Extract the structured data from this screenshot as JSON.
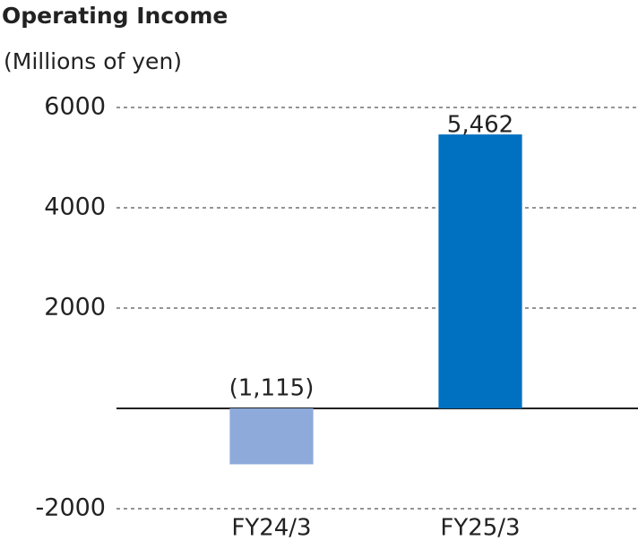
{
  "chart_data": {
    "type": "bar",
    "title": "Operating Income",
    "subtitle": "(Millions of yen)",
    "categories": [
      "FY24/3",
      "FY25/3"
    ],
    "values": [
      -1115,
      5462
    ],
    "value_labels": [
      "(1,115)",
      "5,462"
    ],
    "colors": [
      "#8eaadb",
      "#0070c0"
    ],
    "ylim": [
      -2000,
      6000
    ],
    "yticks": [
      -2000,
      2000,
      4000,
      6000
    ],
    "grid": true
  }
}
